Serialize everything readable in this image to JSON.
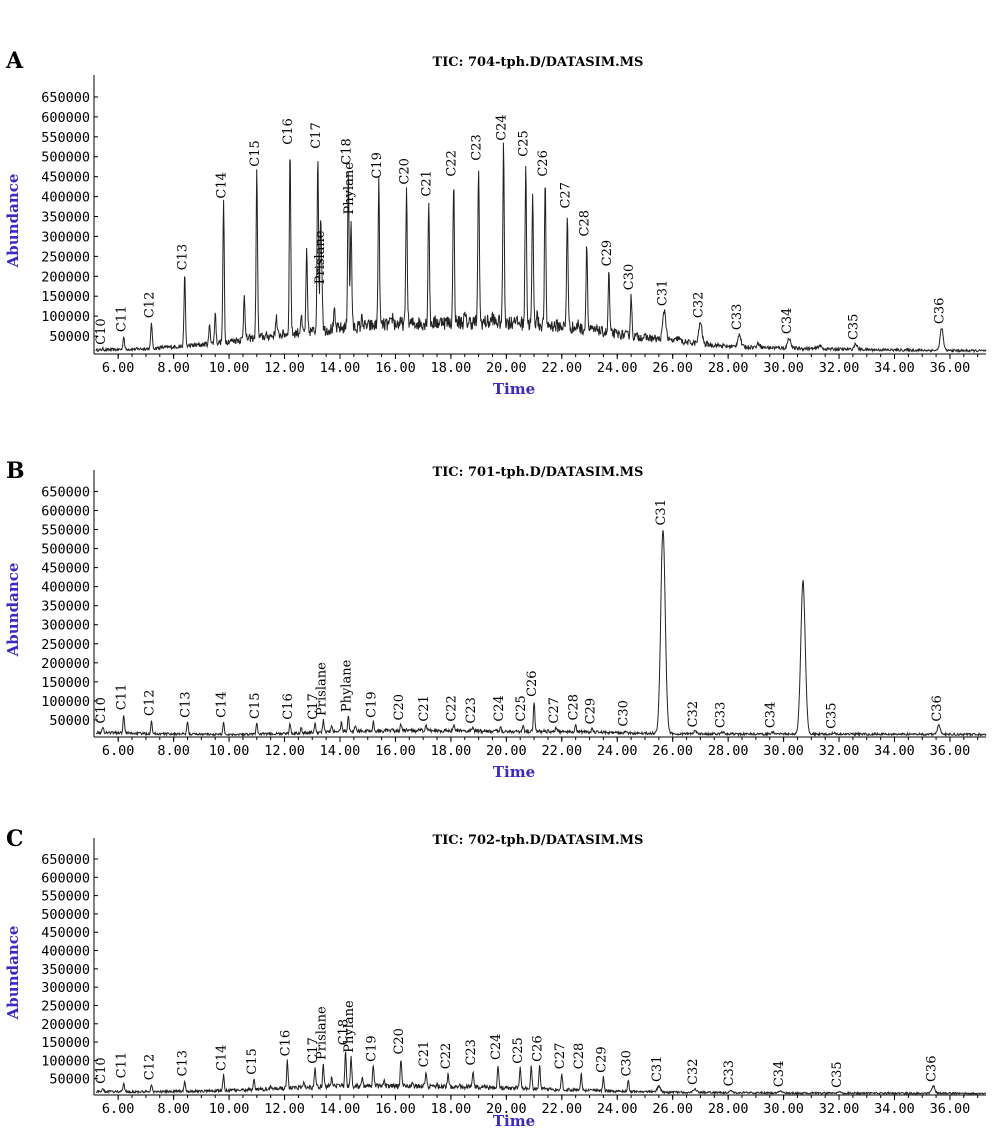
{
  "chart_data": [
    {
      "type": "line",
      "panel_letter": "A",
      "title": "TIC: 704-tph.D/DATASIM.MS",
      "xlabel": "Time",
      "ylabel": "Abundance",
      "xlim": [
        5.2,
        37.3
      ],
      "ylim": [
        0,
        680000
      ],
      "xticks": [
        "6.00",
        "8.00",
        "10.00",
        "12.00",
        "14.00",
        "16.00",
        "18.00",
        "20.00",
        "22.00",
        "24.00",
        "26.00",
        "28.00",
        "30.00",
        "32.00",
        "34.00",
        "36.00"
      ],
      "yticks": [
        "50000",
        "100000",
        "150000",
        "200000",
        "250000",
        "300000",
        "350000",
        "400000",
        "450000",
        "500000",
        "550000",
        "600000",
        "650000"
      ],
      "peaks": [
        {
          "x": 5.45,
          "y": 18000,
          "label": "C10"
        },
        {
          "x": 6.2,
          "y": 50000,
          "label": "C11"
        },
        {
          "x": 7.2,
          "y": 85000,
          "label": "C12"
        },
        {
          "x": 8.4,
          "y": 205000,
          "label": "C13"
        },
        {
          "x": 9.8,
          "y": 385000,
          "label": "C14"
        },
        {
          "x": 11.0,
          "y": 465000,
          "label": "C15"
        },
        {
          "x": 12.2,
          "y": 520000,
          "label": "C16"
        },
        {
          "x": 13.2,
          "y": 510000,
          "label": "C17"
        },
        {
          "x": 13.35,
          "y": 170000,
          "label": "Prislane"
        },
        {
          "x": 14.3,
          "y": 470000,
          "label": "C18"
        },
        {
          "x": 14.4,
          "y": 345000,
          "label": "Phylane"
        },
        {
          "x": 15.4,
          "y": 435000,
          "label": "C19"
        },
        {
          "x": 16.4,
          "y": 420000,
          "label": "C20"
        },
        {
          "x": 17.2,
          "y": 390000,
          "label": "C21"
        },
        {
          "x": 18.1,
          "y": 440000,
          "label": "C22"
        },
        {
          "x": 19.0,
          "y": 480000,
          "label": "C23"
        },
        {
          "x": 19.9,
          "y": 530000,
          "label": "C24"
        },
        {
          "x": 20.7,
          "y": 490000,
          "label": "C25"
        },
        {
          "x": 21.4,
          "y": 440000,
          "label": "C26"
        },
        {
          "x": 22.2,
          "y": 360000,
          "label": "C27"
        },
        {
          "x": 22.9,
          "y": 290000,
          "label": "C28"
        },
        {
          "x": 23.7,
          "y": 215000,
          "label": "C29"
        },
        {
          "x": 24.5,
          "y": 155000,
          "label": "C30"
        },
        {
          "x": 25.7,
          "y": 115000,
          "label": "C31"
        },
        {
          "x": 27.0,
          "y": 85000,
          "label": "C32"
        },
        {
          "x": 28.4,
          "y": 55000,
          "label": "C33"
        },
        {
          "x": 30.2,
          "y": 45000,
          "label": "C34"
        },
        {
          "x": 32.6,
          "y": 30000,
          "label": "C35"
        },
        {
          "x": 35.7,
          "y": 70000,
          "label": "C36"
        }
      ],
      "extra_peaks": [
        {
          "x": 20.95,
          "y": 400000
        },
        {
          "x": 12.8,
          "y": 260000
        },
        {
          "x": 13.3,
          "y": 340000
        },
        {
          "x": 10.55,
          "y": 160000
        },
        {
          "x": 9.5,
          "y": 110000
        },
        {
          "x": 9.3,
          "y": 80000
        },
        {
          "x": 11.7,
          "y": 100000
        },
        {
          "x": 12.6,
          "y": 100000
        },
        {
          "x": 13.8,
          "y": 110000
        },
        {
          "x": 14.8,
          "y": 100000
        },
        {
          "x": 15.9,
          "y": 100000
        },
        {
          "x": 17.7,
          "y": 95000
        },
        {
          "x": 18.5,
          "y": 100000
        },
        {
          "x": 19.5,
          "y": 100000
        },
        {
          "x": 20.3,
          "y": 100000
        },
        {
          "x": 21.1,
          "y": 110000
        },
        {
          "x": 22.6,
          "y": 85000
        },
        {
          "x": 23.3,
          "y": 70000
        },
        {
          "x": 26.2,
          "y": 45000
        },
        {
          "x": 29.1,
          "y": 32000
        },
        {
          "x": 31.3,
          "y": 26000
        }
      ],
      "baseline": [
        [
          5.2,
          15000
        ],
        [
          7,
          18000
        ],
        [
          9,
          28000
        ],
        [
          10.5,
          42000
        ],
        [
          12,
          55000
        ],
        [
          14,
          70000
        ],
        [
          16,
          80000
        ],
        [
          18,
          85000
        ],
        [
          20,
          85000
        ],
        [
          22,
          75000
        ],
        [
          24,
          55000
        ],
        [
          26,
          38000
        ],
        [
          28,
          24000
        ],
        [
          30,
          20000
        ],
        [
          32,
          17000
        ],
        [
          34,
          15000
        ],
        [
          37.3,
          13000
        ]
      ]
    },
    {
      "type": "line",
      "panel_letter": "B",
      "title": "TIC: 701-tph.D/DATASIM.MS",
      "xlabel": "Time",
      "ylabel": "Abundance",
      "xlim": [
        5.2,
        37.3
      ],
      "ylim": [
        0,
        680000
      ],
      "xticks": [
        "6.00",
        "8.00",
        "10.00",
        "12.00",
        "14.00",
        "16.00",
        "18.00",
        "20.00",
        "22.00",
        "24.00",
        "26.00",
        "28.00",
        "30.00",
        "32.00",
        "34.00",
        "36.00"
      ],
      "yticks": [
        "50000",
        "100000",
        "150000",
        "200000",
        "250000",
        "300000",
        "350000",
        "400000",
        "450000",
        "500000",
        "550000",
        "600000",
        "650000"
      ],
      "peaks": [
        {
          "x": 5.45,
          "y": 30000,
          "label": "C10"
        },
        {
          "x": 6.2,
          "y": 65000,
          "label": "C11"
        },
        {
          "x": 7.2,
          "y": 50000,
          "label": "C12"
        },
        {
          "x": 8.5,
          "y": 45000,
          "label": "C13"
        },
        {
          "x": 9.8,
          "y": 45000,
          "label": "C14"
        },
        {
          "x": 11.0,
          "y": 42000,
          "label": "C15"
        },
        {
          "x": 12.2,
          "y": 40000,
          "label": "C16"
        },
        {
          "x": 13.1,
          "y": 40000,
          "label": "C17"
        },
        {
          "x": 13.4,
          "y": 50000,
          "label": "Prislane"
        },
        {
          "x": 14.3,
          "y": 60000,
          "label": "Phylane"
        },
        {
          "x": 15.2,
          "y": 45000,
          "label": "C19"
        },
        {
          "x": 16.2,
          "y": 38000,
          "label": "C20"
        },
        {
          "x": 17.1,
          "y": 35000,
          "label": "C21"
        },
        {
          "x": 18.1,
          "y": 35000,
          "label": "C22"
        },
        {
          "x": 18.8,
          "y": 30000,
          "label": "C23"
        },
        {
          "x": 19.8,
          "y": 35000,
          "label": "C24"
        },
        {
          "x": 20.6,
          "y": 35000,
          "label": "C25"
        },
        {
          "x": 21.0,
          "y": 100000,
          "label": "C26"
        },
        {
          "x": 21.8,
          "y": 30000,
          "label": "C27"
        },
        {
          "x": 22.5,
          "y": 38000,
          "label": "C28"
        },
        {
          "x": 23.1,
          "y": 28000,
          "label": "C29"
        },
        {
          "x": 24.3,
          "y": 22000,
          "label": "C30"
        },
        {
          "x": 25.65,
          "y": 550000,
          "label": "C31"
        },
        {
          "x": 26.8,
          "y": 20000,
          "label": "C32"
        },
        {
          "x": 27.8,
          "y": 18000,
          "label": "C33"
        },
        {
          "x": 29.6,
          "y": 18000,
          "label": "C34"
        },
        {
          "x": 31.8,
          "y": 16000,
          "label": "C35"
        },
        {
          "x": 35.6,
          "y": 35000,
          "label": "C36"
        }
      ],
      "extra_peaks": [
        {
          "x": 30.7,
          "y": 415000
        },
        {
          "x": 14.05,
          "y": 45000
        },
        {
          "x": 14.55,
          "y": 35000
        },
        {
          "x": 13.7,
          "y": 35000
        },
        {
          "x": 12.6,
          "y": 30000
        }
      ],
      "baseline": [
        [
          5.2,
          18000
        ],
        [
          7,
          14000
        ],
        [
          10,
          12000
        ],
        [
          12,
          14000
        ],
        [
          14,
          20000
        ],
        [
          16,
          22000
        ],
        [
          18,
          22000
        ],
        [
          20,
          20000
        ],
        [
          22,
          20000
        ],
        [
          24,
          16000
        ],
        [
          26,
          14000
        ],
        [
          28,
          13000
        ],
        [
          30,
          13000
        ],
        [
          32,
          13000
        ],
        [
          37.3,
          12000
        ]
      ]
    },
    {
      "type": "line",
      "panel_letter": "C",
      "title": "TIC: 702-tph.D/DATASIM.MS",
      "xlabel": "Time",
      "ylabel": "Abundance",
      "xlim": [
        5.2,
        37.3
      ],
      "ylim": [
        0,
        680000
      ],
      "xticks": [
        "6.00",
        "8.00",
        "10.00",
        "12.00",
        "14.00",
        "16.00",
        "18.00",
        "20.00",
        "22.00",
        "24.00",
        "26.00",
        "28.00",
        "30.00",
        "32.00",
        "34.00",
        "36.00"
      ],
      "yticks": [
        "50000",
        "100000",
        "150000",
        "200000",
        "250000",
        "300000",
        "350000",
        "400000",
        "450000",
        "500000",
        "550000",
        "600000",
        "650000"
      ],
      "peaks": [
        {
          "x": 5.45,
          "y": 25000,
          "label": "C10"
        },
        {
          "x": 6.2,
          "y": 40000,
          "label": "C11"
        },
        {
          "x": 7.2,
          "y": 35000,
          "label": "C12"
        },
        {
          "x": 8.4,
          "y": 45000,
          "label": "C13"
        },
        {
          "x": 9.8,
          "y": 60000,
          "label": "C14"
        },
        {
          "x": 10.9,
          "y": 50000,
          "label": "C15"
        },
        {
          "x": 12.1,
          "y": 100000,
          "label": "C16"
        },
        {
          "x": 13.1,
          "y": 80000,
          "label": "C17"
        },
        {
          "x": 13.4,
          "y": 90000,
          "label": "Prislane"
        },
        {
          "x": 14.2,
          "y": 130000,
          "label": "C18"
        },
        {
          "x": 14.4,
          "y": 110000,
          "label": "Phylane"
        },
        {
          "x": 15.2,
          "y": 85000,
          "label": "C19"
        },
        {
          "x": 16.2,
          "y": 105000,
          "label": "C20"
        },
        {
          "x": 17.1,
          "y": 70000,
          "label": "C21"
        },
        {
          "x": 17.9,
          "y": 65000,
          "label": "C22"
        },
        {
          "x": 18.8,
          "y": 75000,
          "label": "C23"
        },
        {
          "x": 19.7,
          "y": 90000,
          "label": "C24"
        },
        {
          "x": 20.5,
          "y": 80000,
          "label": "C25"
        },
        {
          "x": 21.2,
          "y": 85000,
          "label": "C26"
        },
        {
          "x": 22.0,
          "y": 65000,
          "label": "C27"
        },
        {
          "x": 22.7,
          "y": 65000,
          "label": "C28"
        },
        {
          "x": 23.5,
          "y": 55000,
          "label": "C29"
        },
        {
          "x": 24.4,
          "y": 45000,
          "label": "C30"
        },
        {
          "x": 25.5,
          "y": 30000,
          "label": "C31"
        },
        {
          "x": 26.8,
          "y": 22000,
          "label": "C32"
        },
        {
          "x": 28.1,
          "y": 18000,
          "label": "C33"
        },
        {
          "x": 29.9,
          "y": 16000,
          "label": "C34"
        },
        {
          "x": 32.0,
          "y": 14000,
          "label": "C35"
        },
        {
          "x": 35.4,
          "y": 30000,
          "label": "C36"
        }
      ],
      "extra_peaks": [
        {
          "x": 20.9,
          "y": 85000
        },
        {
          "x": 12.7,
          "y": 45000
        },
        {
          "x": 13.7,
          "y": 55000
        },
        {
          "x": 14.8,
          "y": 50000
        },
        {
          "x": 15.6,
          "y": 45000
        },
        {
          "x": 16.6,
          "y": 40000
        },
        {
          "x": 17.5,
          "y": 35000
        },
        {
          "x": 18.3,
          "y": 35000
        },
        {
          "x": 19.2,
          "y": 35000
        },
        {
          "x": 11.5,
          "y": 30000
        }
      ],
      "baseline": [
        [
          5.2,
          15000
        ],
        [
          7,
          14000
        ],
        [
          9,
          16000
        ],
        [
          11,
          20000
        ],
        [
          12,
          24000
        ],
        [
          14,
          30000
        ],
        [
          16,
          30000
        ],
        [
          18,
          28000
        ],
        [
          20,
          25000
        ],
        [
          22,
          20000
        ],
        [
          24,
          16000
        ],
        [
          26,
          13000
        ],
        [
          28,
          12000
        ],
        [
          30,
          11000
        ],
        [
          37.3,
          10000
        ]
      ]
    }
  ]
}
